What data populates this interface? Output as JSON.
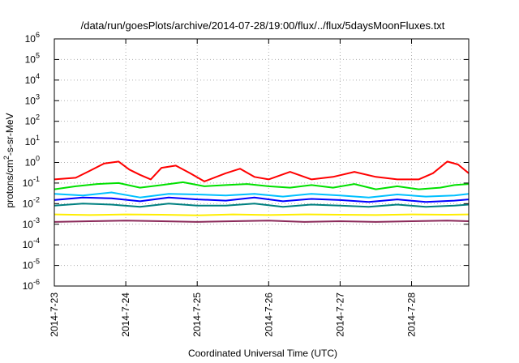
{
  "chart_data": {
    "type": "line",
    "title": "/data/run/goesPlots/archive/2014-07-28/19:00/flux/../flux/5daysMoonFluxes.txt",
    "xlabel": "Coordinated Universal Time (UTC)",
    "ylabel": "protons/cm2-s-sr-MeV",
    "ylabel_parts": {
      "before": "protons/cm",
      "sup": "2",
      "after": "-s-sr-MeV"
    },
    "yscale": "log",
    "ylim_exponents": [
      -6,
      6
    ],
    "y_tick_labels": [
      {
        "base": "10",
        "exp": "6"
      },
      {
        "base": "10",
        "exp": "5"
      },
      {
        "base": "10",
        "exp": "4"
      },
      {
        "base": "10",
        "exp": "3"
      },
      {
        "base": "10",
        "exp": "2"
      },
      {
        "base": "10",
        "exp": "1"
      },
      {
        "base": "10",
        "exp": "0"
      },
      {
        "base": "10",
        "exp": "-1"
      },
      {
        "base": "10",
        "exp": "-2"
      },
      {
        "base": "10",
        "exp": "-3"
      },
      {
        "base": "10",
        "exp": "-4"
      },
      {
        "base": "10",
        "exp": "-5"
      },
      {
        "base": "10",
        "exp": "-6"
      }
    ],
    "xlim": [
      "2014-07-23 00:00",
      "2014-07-28 19:00"
    ],
    "x_tick_labels": [
      "2014-7-23",
      "2014-7-24",
      "2014-7-25",
      "2014-7-26",
      "2014-7-27",
      "2014-7-28"
    ],
    "grid": true,
    "series": [
      {
        "color": "#ff0000",
        "x_days": [
          0,
          0.3,
          0.5,
          0.7,
          0.9,
          1.05,
          1.2,
          1.35,
          1.5,
          1.7,
          1.9,
          2.1,
          2.4,
          2.6,
          2.8,
          3.0,
          3.3,
          3.6,
          3.9,
          4.2,
          4.5,
          4.8,
          5.1,
          5.3,
          5.5,
          5.65,
          5.8
        ],
        "y": [
          0.15,
          0.18,
          0.4,
          0.9,
          1.1,
          0.45,
          0.25,
          0.15,
          0.55,
          0.7,
          0.3,
          0.12,
          0.3,
          0.5,
          0.2,
          0.15,
          0.35,
          0.15,
          0.2,
          0.35,
          0.2,
          0.15,
          0.15,
          0.3,
          1.1,
          0.8,
          0.3
        ]
      },
      {
        "color": "#00e000",
        "x_days": [
          0,
          0.3,
          0.6,
          0.9,
          1.2,
          1.5,
          1.8,
          2.1,
          2.4,
          2.7,
          3.0,
          3.3,
          3.6,
          3.9,
          4.2,
          4.5,
          4.8,
          5.1,
          5.4,
          5.6,
          5.8
        ],
        "y": [
          0.05,
          0.07,
          0.09,
          0.1,
          0.06,
          0.08,
          0.11,
          0.07,
          0.08,
          0.09,
          0.07,
          0.06,
          0.08,
          0.06,
          0.09,
          0.05,
          0.07,
          0.05,
          0.06,
          0.08,
          0.09
        ]
      },
      {
        "color": "#00c0ff",
        "x_days": [
          0,
          0.4,
          0.8,
          1.2,
          1.6,
          2.0,
          2.4,
          2.8,
          3.2,
          3.6,
          4.0,
          4.4,
          4.8,
          5.2,
          5.6,
          5.8
        ],
        "y": [
          0.03,
          0.025,
          0.035,
          0.02,
          0.03,
          0.028,
          0.025,
          0.03,
          0.022,
          0.03,
          0.025,
          0.02,
          0.028,
          0.022,
          0.025,
          0.03
        ]
      },
      {
        "color": "#0000ff",
        "x_days": [
          0,
          0.4,
          0.8,
          1.2,
          1.6,
          2.0,
          2.4,
          2.8,
          3.2,
          3.6,
          4.0,
          4.4,
          4.8,
          5.2,
          5.6,
          5.8
        ],
        "y": [
          0.015,
          0.02,
          0.018,
          0.013,
          0.02,
          0.016,
          0.014,
          0.02,
          0.013,
          0.017,
          0.015,
          0.012,
          0.016,
          0.012,
          0.014,
          0.016
        ]
      },
      {
        "color": "#008080",
        "x_days": [
          0,
          0.4,
          0.8,
          1.2,
          1.6,
          2.0,
          2.4,
          2.8,
          3.2,
          3.6,
          4.0,
          4.4,
          4.8,
          5.2,
          5.6,
          5.8
        ],
        "y": [
          0.008,
          0.01,
          0.009,
          0.007,
          0.01,
          0.008,
          0.008,
          0.01,
          0.007,
          0.009,
          0.008,
          0.007,
          0.009,
          0.007,
          0.008,
          0.009
        ]
      },
      {
        "color": "#ffee00",
        "x_days": [
          0,
          0.5,
          1.0,
          1.5,
          2.0,
          2.5,
          3.0,
          3.5,
          4.0,
          4.5,
          5.0,
          5.5,
          5.8
        ],
        "y": [
          0.003,
          0.0028,
          0.003,
          0.0029,
          0.0027,
          0.003,
          0.0028,
          0.003,
          0.0029,
          0.0028,
          0.003,
          0.0029,
          0.003
        ]
      },
      {
        "color": "#8b2a5a",
        "x_days": [
          0,
          0.5,
          1.0,
          1.5,
          2.0,
          2.5,
          3.0,
          3.5,
          4.0,
          4.5,
          5.0,
          5.5,
          5.8
        ],
        "y": [
          0.0013,
          0.0014,
          0.0015,
          0.0014,
          0.0013,
          0.0014,
          0.0015,
          0.0013,
          0.0014,
          0.0013,
          0.0014,
          0.0015,
          0.0014
        ]
      }
    ]
  }
}
